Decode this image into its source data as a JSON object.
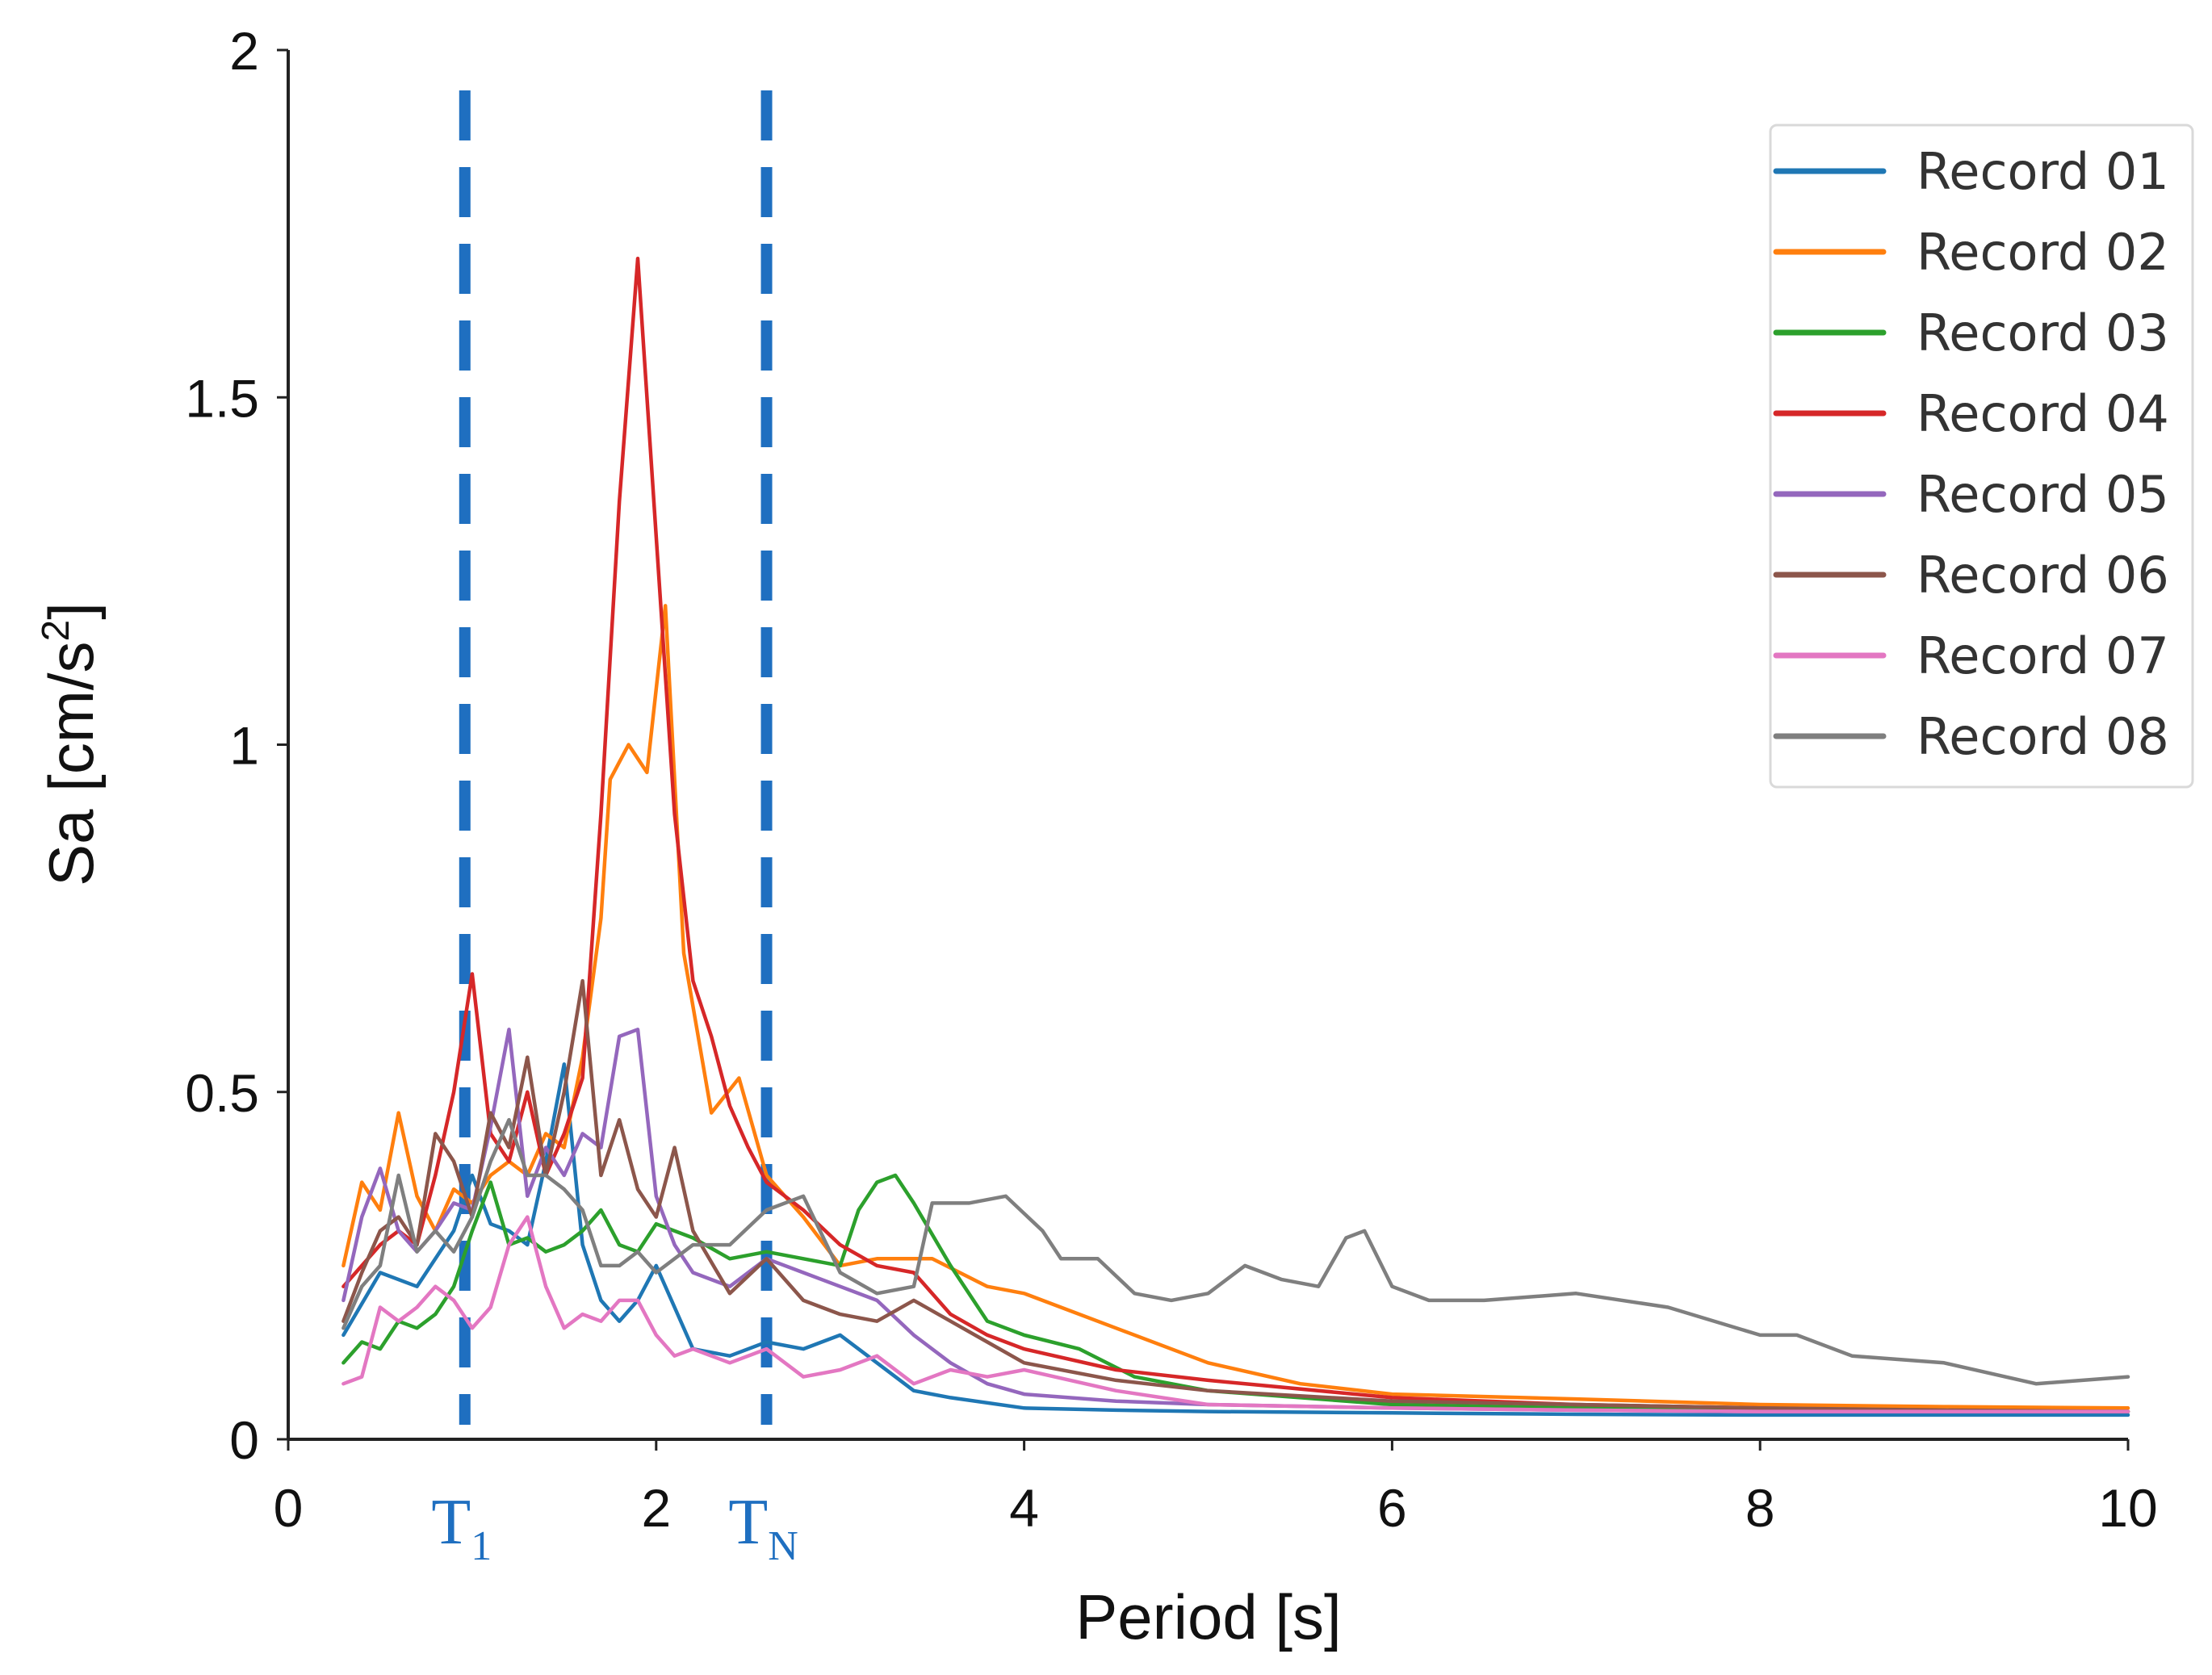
{
  "chart_data": {
    "type": "line",
    "title": "",
    "xlabel": "Period [s]",
    "ylabel": "Sa [cm/s",
    "ylabel_superscript": "2",
    "ylabel_close": "]",
    "xlim": [
      0,
      10
    ],
    "ylim": [
      0,
      2
    ],
    "xticks": [
      0,
      2,
      4,
      6,
      8,
      10
    ],
    "xtick_labels": [
      "0",
      "2",
      "4",
      "6",
      "8",
      "10"
    ],
    "yticks": [
      0,
      0.5,
      1,
      1.5,
      2
    ],
    "ytick_labels": [
      "0",
      "0.5",
      "1",
      "1.5",
      "2"
    ],
    "grid": false,
    "legend_position": "top-right",
    "markers": [
      {
        "name": "T",
        "subscript": "1",
        "x": 0.96,
        "color": "#1f6fc0"
      },
      {
        "name": "T",
        "subscript": "N",
        "x": 2.6,
        "color": "#1f6fc0"
      }
    ],
    "series": [
      {
        "name": "Record 01",
        "color": "#1f77b4",
        "x": [
          0.3,
          0.5,
          0.7,
          0.9,
          1.0,
          1.1,
          1.2,
          1.3,
          1.4,
          1.5,
          1.6,
          1.7,
          1.8,
          1.9,
          2.0,
          2.2,
          2.4,
          2.6,
          2.8,
          3.0,
          3.2,
          3.4,
          3.6,
          4.0,
          4.5,
          5,
          6,
          7,
          8,
          9,
          10
        ],
        "y": [
          0.15,
          0.24,
          0.22,
          0.3,
          0.38,
          0.31,
          0.3,
          0.28,
          0.4,
          0.54,
          0.28,
          0.2,
          0.17,
          0.2,
          0.25,
          0.13,
          0.12,
          0.14,
          0.13,
          0.15,
          0.11,
          0.07,
          0.06,
          0.045,
          0.042,
          0.04,
          0.038,
          0.036,
          0.035,
          0.035,
          0.035
        ]
      },
      {
        "name": "Record 02",
        "color": "#ff7f0e",
        "x": [
          0.3,
          0.4,
          0.5,
          0.6,
          0.7,
          0.8,
          0.9,
          1.0,
          1.1,
          1.2,
          1.3,
          1.4,
          1.5,
          1.6,
          1.7,
          1.75,
          1.85,
          1.95,
          2.05,
          2.15,
          2.3,
          2.45,
          2.6,
          2.8,
          3.0,
          3.2,
          3.5,
          3.8,
          4.0,
          4.5,
          5.0,
          5.5,
          6,
          7,
          8,
          9,
          10
        ],
        "y": [
          0.25,
          0.37,
          0.33,
          0.47,
          0.35,
          0.3,
          0.36,
          0.34,
          0.38,
          0.4,
          0.38,
          0.44,
          0.42,
          0.55,
          0.75,
          0.95,
          1.0,
          0.96,
          1.2,
          0.7,
          0.47,
          0.52,
          0.38,
          0.32,
          0.25,
          0.26,
          0.26,
          0.22,
          0.21,
          0.16,
          0.11,
          0.08,
          0.065,
          0.058,
          0.05,
          0.047,
          0.045
        ]
      },
      {
        "name": "Record 03",
        "color": "#2ca02c",
        "x": [
          0.3,
          0.4,
          0.5,
          0.6,
          0.7,
          0.8,
          0.9,
          1.0,
          1.1,
          1.2,
          1.3,
          1.4,
          1.5,
          1.6,
          1.7,
          1.8,
          1.9,
          2.0,
          2.2,
          2.4,
          2.6,
          2.8,
          3.0,
          3.1,
          3.2,
          3.3,
          3.4,
          3.6,
          3.8,
          4.0,
          4.3,
          4.6,
          5,
          6,
          7,
          8,
          9,
          10
        ],
        "y": [
          0.11,
          0.14,
          0.13,
          0.17,
          0.16,
          0.18,
          0.22,
          0.3,
          0.37,
          0.28,
          0.29,
          0.27,
          0.28,
          0.3,
          0.33,
          0.28,
          0.27,
          0.31,
          0.29,
          0.26,
          0.27,
          0.26,
          0.25,
          0.33,
          0.37,
          0.38,
          0.34,
          0.25,
          0.17,
          0.15,
          0.13,
          0.09,
          0.07,
          0.05,
          0.045,
          0.042,
          0.04,
          0.04
        ]
      },
      {
        "name": "Record 04",
        "color": "#d62728",
        "x": [
          0.3,
          0.4,
          0.5,
          0.6,
          0.7,
          0.8,
          0.9,
          1.0,
          1.1,
          1.2,
          1.3,
          1.4,
          1.5,
          1.6,
          1.7,
          1.8,
          1.9,
          2.0,
          2.1,
          2.2,
          2.3,
          2.4,
          2.5,
          2.6,
          2.8,
          3.0,
          3.2,
          3.4,
          3.6,
          3.8,
          4.0,
          4.5,
          5,
          6,
          7,
          8,
          9,
          10
        ],
        "y": [
          0.22,
          0.25,
          0.28,
          0.3,
          0.28,
          0.38,
          0.5,
          0.67,
          0.44,
          0.4,
          0.5,
          0.38,
          0.44,
          0.52,
          0.9,
          1.35,
          1.7,
          1.3,
          0.9,
          0.66,
          0.58,
          0.48,
          0.42,
          0.37,
          0.33,
          0.28,
          0.25,
          0.24,
          0.18,
          0.15,
          0.13,
          0.1,
          0.085,
          0.06,
          0.05,
          0.045,
          0.04,
          0.04
        ]
      },
      {
        "name": "Record 05",
        "color": "#9467bd",
        "x": [
          0.3,
          0.4,
          0.5,
          0.6,
          0.7,
          0.8,
          0.9,
          1.0,
          1.1,
          1.2,
          1.3,
          1.4,
          1.5,
          1.6,
          1.7,
          1.8,
          1.9,
          2.0,
          2.1,
          2.2,
          2.4,
          2.6,
          2.8,
          3.0,
          3.2,
          3.4,
          3.6,
          3.8,
          4.0,
          4.5,
          5,
          6,
          7,
          8,
          9,
          10
        ],
        "y": [
          0.2,
          0.32,
          0.39,
          0.3,
          0.27,
          0.3,
          0.34,
          0.33,
          0.45,
          0.59,
          0.35,
          0.42,
          0.38,
          0.44,
          0.42,
          0.58,
          0.59,
          0.35,
          0.28,
          0.24,
          0.22,
          0.26,
          0.24,
          0.22,
          0.2,
          0.15,
          0.11,
          0.08,
          0.065,
          0.055,
          0.05,
          0.045,
          0.042,
          0.04,
          0.04,
          0.04
        ]
      },
      {
        "name": "Record 06",
        "color": "#8c564b",
        "x": [
          0.3,
          0.4,
          0.5,
          0.6,
          0.7,
          0.8,
          0.9,
          1.0,
          1.1,
          1.2,
          1.3,
          1.4,
          1.5,
          1.6,
          1.7,
          1.8,
          1.9,
          2.0,
          2.1,
          2.2,
          2.4,
          2.6,
          2.8,
          3.0,
          3.2,
          3.4,
          3.6,
          3.8,
          4.0,
          4.5,
          5,
          6,
          7,
          8,
          9,
          10
        ],
        "y": [
          0.17,
          0.24,
          0.3,
          0.32,
          0.28,
          0.44,
          0.4,
          0.32,
          0.47,
          0.42,
          0.55,
          0.38,
          0.5,
          0.66,
          0.38,
          0.46,
          0.36,
          0.32,
          0.42,
          0.3,
          0.21,
          0.26,
          0.2,
          0.18,
          0.17,
          0.2,
          0.17,
          0.14,
          0.11,
          0.085,
          0.07,
          0.055,
          0.05,
          0.045,
          0.042,
          0.04
        ]
      },
      {
        "name": "Record 07",
        "color": "#e377c2",
        "x": [
          0.3,
          0.4,
          0.5,
          0.6,
          0.7,
          0.8,
          0.9,
          1.0,
          1.1,
          1.2,
          1.3,
          1.4,
          1.5,
          1.6,
          1.7,
          1.8,
          1.9,
          2.0,
          2.1,
          2.2,
          2.4,
          2.6,
          2.8,
          3.0,
          3.2,
          3.4,
          3.6,
          3.8,
          4.0,
          4.5,
          5,
          6,
          7,
          8,
          9,
          10
        ],
        "y": [
          0.08,
          0.09,
          0.19,
          0.17,
          0.19,
          0.22,
          0.2,
          0.16,
          0.19,
          0.28,
          0.32,
          0.22,
          0.16,
          0.18,
          0.17,
          0.2,
          0.2,
          0.15,
          0.12,
          0.13,
          0.11,
          0.13,
          0.09,
          0.1,
          0.12,
          0.08,
          0.1,
          0.09,
          0.1,
          0.07,
          0.05,
          0.045,
          0.042,
          0.04,
          0.04,
          0.04
        ]
      },
      {
        "name": "Record 08",
        "color": "#7f7f7f",
        "x": [
          0.3,
          0.4,
          0.5,
          0.6,
          0.7,
          0.8,
          0.9,
          1.0,
          1.1,
          1.2,
          1.3,
          1.4,
          1.5,
          1.6,
          1.7,
          1.8,
          1.9,
          2.0,
          2.2,
          2.4,
          2.6,
          2.8,
          3.0,
          3.2,
          3.4,
          3.5,
          3.7,
          3.9,
          4.1,
          4.2,
          4.4,
          4.6,
          4.8,
          5.0,
          5.2,
          5.4,
          5.6,
          5.75,
          5.85,
          6.0,
          6.2,
          6.5,
          7.0,
          7.5,
          8.0,
          8.2,
          8.5,
          9.0,
          9.5,
          10
        ],
        "y": [
          0.16,
          0.22,
          0.25,
          0.38,
          0.27,
          0.3,
          0.27,
          0.32,
          0.4,
          0.46,
          0.38,
          0.38,
          0.36,
          0.33,
          0.25,
          0.25,
          0.27,
          0.24,
          0.28,
          0.28,
          0.33,
          0.35,
          0.24,
          0.21,
          0.22,
          0.34,
          0.34,
          0.35,
          0.3,
          0.26,
          0.26,
          0.21,
          0.2,
          0.21,
          0.25,
          0.23,
          0.22,
          0.29,
          0.3,
          0.22,
          0.2,
          0.2,
          0.21,
          0.19,
          0.15,
          0.15,
          0.12,
          0.11,
          0.08,
          0.09
        ]
      }
    ]
  }
}
